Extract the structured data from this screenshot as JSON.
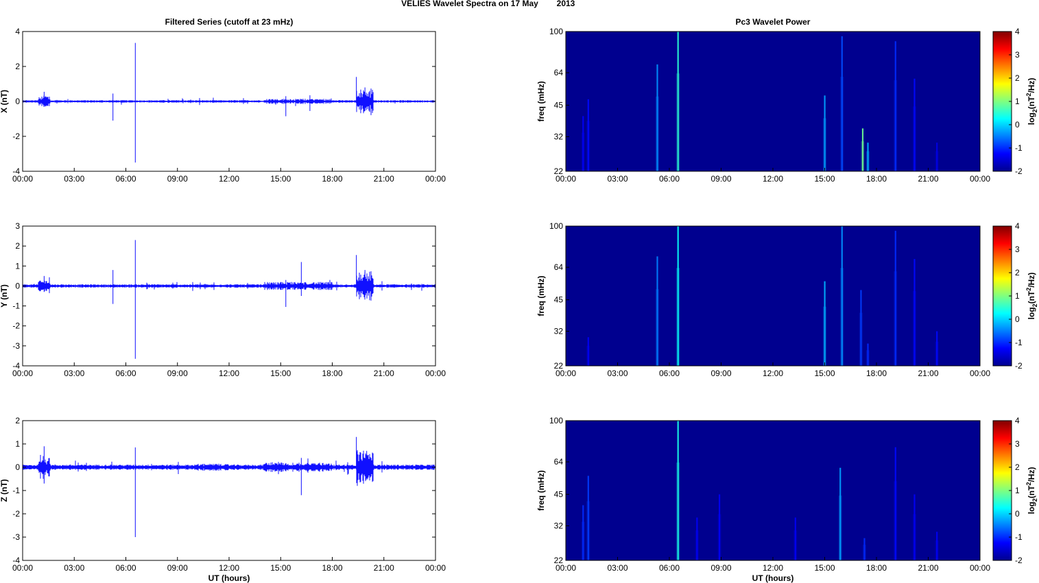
{
  "figure": {
    "title_station": "VELIES Wavelet Spectra on 17 May",
    "title_year": "2013"
  },
  "colors": {
    "trace": "#1010ff",
    "background_power": "#00008f",
    "axes": "#000000"
  },
  "chart_data": [
    {
      "id": "x-series",
      "type": "line",
      "title": "Filtered Series (cutoff at 23 mHz)",
      "xlabel": "",
      "ylabel": "X (nT)",
      "xticks": [
        "00:00",
        "03:00",
        "06:00",
        "09:00",
        "12:00",
        "15:00",
        "18:00",
        "21:00",
        "00:00"
      ],
      "xlim_hours": [
        0,
        24
      ],
      "ylim": [
        -4,
        4
      ],
      "yticks": [
        -4,
        -2,
        0,
        2,
        4
      ],
      "baseline_amplitude": 0.05,
      "spikes": [
        {
          "t": 1.25,
          "min": -0.3,
          "max": 0.55
        },
        {
          "t": 5.25,
          "min": -1.1,
          "max": 0.45
        },
        {
          "t": 6.55,
          "min": -3.5,
          "max": 3.35
        },
        {
          "t": 15.3,
          "min": -0.85,
          "max": 0.3
        },
        {
          "t": 16.7,
          "min": -0.55,
          "max": 0.35
        },
        {
          "t": 19.4,
          "min": -0.1,
          "max": 1.4
        },
        {
          "t": 19.9,
          "min": -0.2,
          "max": 0.8
        }
      ],
      "bursts": [
        {
          "start": 0.9,
          "end": 1.6,
          "amp": 0.3
        },
        {
          "start": 14.0,
          "end": 18.0,
          "amp": 0.15
        },
        {
          "start": 19.4,
          "end": 20.4,
          "amp": 0.7
        }
      ]
    },
    {
      "id": "y-series",
      "type": "line",
      "title": "",
      "xlabel": "",
      "ylabel": "Y (nT)",
      "xticks": [
        "00:00",
        "03:00",
        "06:00",
        "09:00",
        "12:00",
        "15:00",
        "18:00",
        "21:00",
        "00:00"
      ],
      "xlim_hours": [
        0,
        24
      ],
      "ylim": [
        -4,
        3
      ],
      "yticks": [
        -4,
        -3,
        -2,
        -1,
        0,
        1,
        2,
        3
      ],
      "baseline_amplitude": 0.06,
      "spikes": [
        {
          "t": 1.25,
          "min": -0.3,
          "max": 0.5
        },
        {
          "t": 5.25,
          "min": -0.9,
          "max": 0.8
        },
        {
          "t": 6.55,
          "min": -3.65,
          "max": 2.3
        },
        {
          "t": 15.3,
          "min": -1.05,
          "max": 0.3
        },
        {
          "t": 16.2,
          "min": -0.5,
          "max": 1.2
        },
        {
          "t": 19.4,
          "min": -0.1,
          "max": 1.55
        },
        {
          "t": 19.9,
          "min": -0.3,
          "max": 0.8
        }
      ],
      "bursts": [
        {
          "start": 0.9,
          "end": 1.6,
          "amp": 0.3
        },
        {
          "start": 14.0,
          "end": 18.0,
          "amp": 0.2
        },
        {
          "start": 19.4,
          "end": 20.4,
          "amp": 0.75
        }
      ]
    },
    {
      "id": "z-series",
      "type": "line",
      "title": "",
      "xlabel": "UT (hours)",
      "ylabel": "Z (nT)",
      "xticks": [
        "00:00",
        "03:00",
        "06:00",
        "09:00",
        "12:00",
        "15:00",
        "18:00",
        "21:00",
        "00:00"
      ],
      "xlim_hours": [
        0,
        24
      ],
      "ylim": [
        -4,
        2
      ],
      "yticks": [
        -4,
        -3,
        -2,
        -1,
        0,
        1,
        2
      ],
      "baseline_amplitude": 0.08,
      "spikes": [
        {
          "t": 1.25,
          "min": -0.7,
          "max": 0.9
        },
        {
          "t": 6.55,
          "min": -3.0,
          "max": 0.85
        },
        {
          "t": 16.2,
          "min": -1.2,
          "max": 0.4
        },
        {
          "t": 19.4,
          "min": -0.1,
          "max": 1.3
        },
        {
          "t": 20.0,
          "min": -0.3,
          "max": 0.7
        }
      ],
      "bursts": [
        {
          "start": 0.9,
          "end": 1.6,
          "amp": 0.4
        },
        {
          "start": 10.0,
          "end": 12.0,
          "amp": 0.15
        },
        {
          "start": 14.0,
          "end": 18.0,
          "amp": 0.2
        },
        {
          "start": 19.4,
          "end": 20.4,
          "amp": 0.75
        }
      ]
    },
    {
      "id": "x-power",
      "type": "heatmap",
      "title": "Pc3 Wavelet Power",
      "xlabel": "",
      "ylabel": "freq (mHz)",
      "xticks": [
        "00:00",
        "03:00",
        "06:00",
        "09:00",
        "12:00",
        "15:00",
        "18:00",
        "21:00",
        "00:00"
      ],
      "xlim_hours": [
        0,
        24
      ],
      "yticks": [
        22,
        32,
        45,
        64,
        100
      ],
      "ylim_mhz": [
        22,
        100
      ],
      "colorbar_label": "log2(nT2/Hz)",
      "colorbar_ticks": [
        -2,
        -1,
        0,
        1,
        2,
        3,
        4
      ],
      "clim": [
        -2,
        4
      ],
      "background_level": -2,
      "streaks": [
        {
          "t": 1.0,
          "fmax": 40,
          "level": -1.3
        },
        {
          "t": 1.3,
          "fmax": 48,
          "level": -1.2
        },
        {
          "t": 5.3,
          "fmax": 70,
          "level": -0.4
        },
        {
          "t": 6.5,
          "fmax": 100,
          "level": 0.5
        },
        {
          "t": 15.0,
          "fmax": 50,
          "level": -0.3
        },
        {
          "t": 16.0,
          "fmax": 95,
          "level": -0.8
        },
        {
          "t": 17.2,
          "fmax": 35,
          "level": 0.9
        },
        {
          "t": 17.5,
          "fmax": 30,
          "level": -0.2
        },
        {
          "t": 19.1,
          "fmax": 90,
          "level": -1.0
        },
        {
          "t": 20.2,
          "fmax": 60,
          "level": -1.2
        },
        {
          "t": 21.5,
          "fmax": 30,
          "level": -1.4
        }
      ]
    },
    {
      "id": "y-power",
      "type": "heatmap",
      "title": "",
      "xlabel": "",
      "ylabel": "freq (mHz)",
      "xticks": [
        "00:00",
        "03:00",
        "06:00",
        "09:00",
        "12:00",
        "15:00",
        "18:00",
        "21:00",
        "00:00"
      ],
      "xlim_hours": [
        0,
        24
      ],
      "yticks": [
        22,
        32,
        45,
        64,
        100
      ],
      "ylim_mhz": [
        22,
        100
      ],
      "colorbar_label": "log2(nT2/Hz)",
      "colorbar_ticks": [
        -2,
        -1,
        0,
        1,
        2,
        3,
        4
      ],
      "clim": [
        -2,
        4
      ],
      "background_level": -2,
      "streaks": [
        {
          "t": 1.3,
          "fmax": 30,
          "level": -1.3
        },
        {
          "t": 5.3,
          "fmax": 72,
          "level": -0.5
        },
        {
          "t": 6.5,
          "fmax": 100,
          "level": 0.3
        },
        {
          "t": 15.0,
          "fmax": 55,
          "level": -0.2
        },
        {
          "t": 16.0,
          "fmax": 100,
          "level": -0.4
        },
        {
          "t": 17.1,
          "fmax": 50,
          "level": -0.9
        },
        {
          "t": 17.5,
          "fmax": 28,
          "level": -1.0
        },
        {
          "t": 19.1,
          "fmax": 95,
          "level": -1.0
        },
        {
          "t": 20.2,
          "fmax": 70,
          "level": -1.2
        },
        {
          "t": 21.5,
          "fmax": 32,
          "level": -1.2
        }
      ]
    },
    {
      "id": "z-power",
      "type": "heatmap",
      "title": "",
      "xlabel": "UT (hours)",
      "ylabel": "freq (mHz)",
      "xticks": [
        "00:00",
        "03:00",
        "06:00",
        "09:00",
        "12:00",
        "15:00",
        "18:00",
        "21:00",
        "00:00"
      ],
      "xlim_hours": [
        0,
        24
      ],
      "yticks": [
        22,
        32,
        45,
        64,
        100
      ],
      "ylim_mhz": [
        22,
        100
      ],
      "colorbar_label": "log2(nT2/Hz)",
      "colorbar_ticks": [
        -2,
        -1,
        0,
        1,
        2,
        3,
        4
      ],
      "clim": [
        -2,
        4
      ],
      "background_level": -2,
      "streaks": [
        {
          "t": 1.0,
          "fmax": 40,
          "level": -1.0
        },
        {
          "t": 1.3,
          "fmax": 55,
          "level": -0.9
        },
        {
          "t": 6.5,
          "fmax": 100,
          "level": 0.4
        },
        {
          "t": 7.6,
          "fmax": 35,
          "level": -1.3
        },
        {
          "t": 8.9,
          "fmax": 45,
          "level": -1.3
        },
        {
          "t": 13.3,
          "fmax": 35,
          "level": -1.3
        },
        {
          "t": 15.9,
          "fmax": 60,
          "level": -0.3
        },
        {
          "t": 17.3,
          "fmax": 28,
          "level": -1.0
        },
        {
          "t": 19.1,
          "fmax": 75,
          "level": -1.2
        },
        {
          "t": 20.2,
          "fmax": 45,
          "level": -1.3
        },
        {
          "t": 21.5,
          "fmax": 30,
          "level": -1.3
        }
      ]
    }
  ]
}
